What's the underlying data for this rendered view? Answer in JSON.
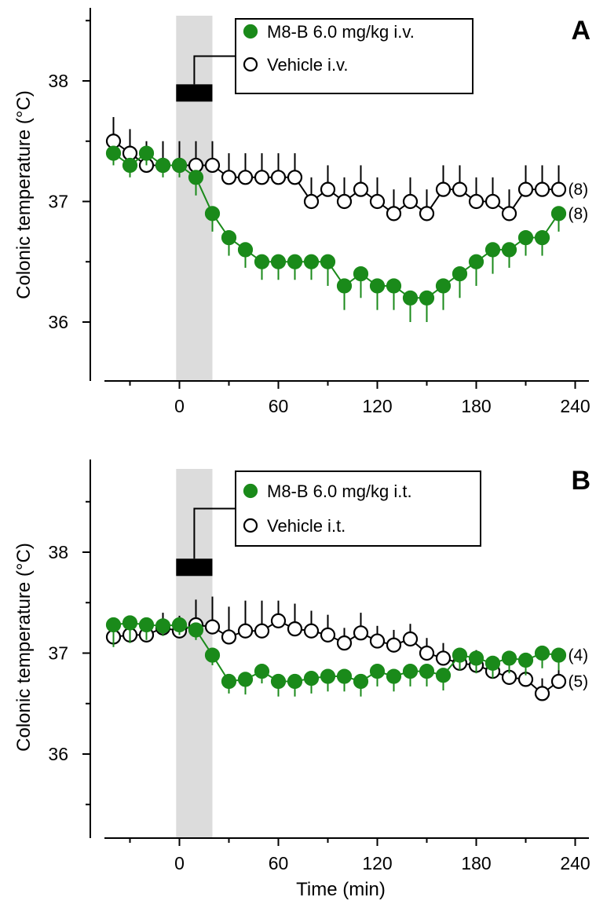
{
  "colors": {
    "drug": "#1a8a1a",
    "vehicle_stroke": "#000000",
    "vehicle_fill": "#ffffff",
    "shading": "#dcdcdc",
    "bar": "#000000"
  },
  "xlabel": "Time (min)",
  "chart_data": [
    {
      "type": "line",
      "panel": "A",
      "ylabel": "Colonic temperature (°C)",
      "xlabel": "",
      "xlim": [
        -42,
        250
      ],
      "ylim": [
        35.55,
        38.58
      ],
      "xticks": [
        0,
        60,
        120,
        180,
        240
      ],
      "xtick_labels": [
        "0",
        "60",
        "120",
        "180",
        "240"
      ],
      "yticks": [
        36,
        37,
        38
      ],
      "ytick_labels": [
        "36",
        "37",
        "38"
      ],
      "shaded_interval": [
        -2,
        20
      ],
      "infusion_bar": {
        "x": [
          -2,
          20
        ],
        "y": 37.9
      },
      "legend": {
        "location": "top-center",
        "entries": [
          "M8-B 6.0 mg/kg i.v.",
          "Vehicle i.v."
        ]
      },
      "series": [
        {
          "name": "M8-B 6.0 mg/kg i.v.",
          "marker": "filled-circle",
          "color": "#1a8a1a",
          "n_label": "(8)",
          "x": [
            -40,
            -30,
            -20,
            -10,
            0,
            10,
            20,
            30,
            40,
            50,
            60,
            70,
            80,
            90,
            100,
            110,
            120,
            130,
            140,
            150,
            160,
            170,
            180,
            190,
            200,
            210,
            220,
            230
          ],
          "y": [
            37.4,
            37.3,
            37.4,
            37.3,
            37.3,
            37.2,
            36.9,
            36.7,
            36.6,
            36.5,
            36.5,
            36.5,
            36.5,
            36.5,
            36.3,
            36.4,
            36.3,
            36.3,
            36.2,
            36.2,
            36.3,
            36.4,
            36.5,
            36.6,
            36.6,
            36.7,
            36.7,
            36.9
          ],
          "err": [
            0.1,
            0.1,
            0.1,
            0.1,
            0.1,
            0.15,
            0.15,
            0.15,
            0.15,
            0.15,
            0.15,
            0.15,
            0.15,
            0.2,
            0.2,
            0.2,
            0.2,
            0.2,
            0.2,
            0.2,
            0.2,
            0.2,
            0.2,
            0.2,
            0.15,
            0.15,
            0.15,
            0.15
          ]
        },
        {
          "name": "Vehicle i.v.",
          "marker": "open-circle",
          "color": "#000000",
          "n_label": "(8)",
          "x": [
            -40,
            -30,
            -20,
            -10,
            0,
            10,
            20,
            30,
            40,
            50,
            60,
            70,
            80,
            90,
            100,
            110,
            120,
            130,
            140,
            150,
            160,
            170,
            180,
            190,
            200,
            210,
            220,
            230
          ],
          "y": [
            37.5,
            37.4,
            37.3,
            37.3,
            37.3,
            37.3,
            37.3,
            37.2,
            37.2,
            37.2,
            37.2,
            37.2,
            37.0,
            37.1,
            37.0,
            37.1,
            37.0,
            36.9,
            37.0,
            36.9,
            37.1,
            37.1,
            37.0,
            37.0,
            36.9,
            37.1,
            37.1,
            37.1
          ],
          "err": [
            0.2,
            0.2,
            0.2,
            0.2,
            0.2,
            0.2,
            0.2,
            0.2,
            0.2,
            0.2,
            0.2,
            0.2,
            0.2,
            0.2,
            0.2,
            0.2,
            0.2,
            0.2,
            0.2,
            0.2,
            0.2,
            0.2,
            0.2,
            0.2,
            0.2,
            0.2,
            0.2,
            0.2
          ]
        }
      ]
    },
    {
      "type": "line",
      "panel": "B",
      "ylabel": "Colonic temperature (°C)",
      "xlabel": "Time (min)",
      "xlim": [
        -42,
        250
      ],
      "ylim": [
        35.55,
        38.58
      ],
      "xticks": [
        0,
        60,
        120,
        180,
        240
      ],
      "xtick_labels": [
        "0",
        "60",
        "120",
        "180",
        "240"
      ],
      "yticks": [
        36,
        37,
        38
      ],
      "ytick_labels": [
        "36",
        "37",
        "38"
      ],
      "shaded_interval": [
        -2,
        20
      ],
      "infusion_bar": {
        "x": [
          -2,
          20
        ],
        "y": 37.85
      },
      "legend": {
        "location": "top-center",
        "entries": [
          "M8-B 6.0 mg/kg i.t.",
          "Vehicle i.t."
        ]
      },
      "series": [
        {
          "name": "M8-B 6.0 mg/kg i.t.",
          "marker": "filled-circle",
          "color": "#1a8a1a",
          "n_label": "(4)",
          "x": [
            -40,
            -30,
            -20,
            -10,
            0,
            10,
            20,
            30,
            40,
            50,
            60,
            70,
            80,
            90,
            100,
            110,
            120,
            130,
            140,
            150,
            160,
            170,
            180,
            190,
            200,
            210,
            220,
            230
          ],
          "y": [
            37.28,
            37.3,
            37.28,
            37.27,
            37.28,
            37.23,
            36.98,
            36.72,
            36.74,
            36.82,
            36.72,
            36.72,
            36.75,
            36.77,
            36.77,
            36.72,
            36.82,
            36.77,
            36.82,
            36.82,
            36.78,
            36.98,
            36.95,
            36.9,
            36.95,
            36.93,
            37.0,
            36.98
          ],
          "err": [
            0.22,
            0.2,
            0.15,
            0.1,
            0.1,
            0.1,
            0.1,
            0.12,
            0.15,
            0.12,
            0.15,
            0.15,
            0.15,
            0.15,
            0.15,
            0.15,
            0.15,
            0.15,
            0.15,
            0.15,
            0.15,
            0.15,
            0.15,
            0.15,
            0.15,
            0.15,
            0.15,
            0.15
          ]
        },
        {
          "name": "Vehicle i.t.",
          "marker": "open-circle",
          "color": "#000000",
          "n_label": "(5)",
          "x": [
            -40,
            -30,
            -20,
            -10,
            0,
            10,
            20,
            30,
            40,
            50,
            60,
            70,
            80,
            90,
            100,
            110,
            120,
            130,
            140,
            150,
            160,
            170,
            180,
            190,
            200,
            210,
            220,
            230
          ],
          "y": [
            37.16,
            37.18,
            37.18,
            37.25,
            37.22,
            37.28,
            37.26,
            37.16,
            37.22,
            37.22,
            37.32,
            37.24,
            37.22,
            37.18,
            37.1,
            37.2,
            37.12,
            37.08,
            37.14,
            37.0,
            36.95,
            36.9,
            36.88,
            36.82,
            36.76,
            36.74,
            36.6,
            36.72
          ],
          "err": [
            0.15,
            0.15,
            0.15,
            0.15,
            0.15,
            0.25,
            0.3,
            0.3,
            0.3,
            0.3,
            0.2,
            0.25,
            0.2,
            0.2,
            0.15,
            0.2,
            0.15,
            0.15,
            0.15,
            0.15,
            0.15,
            0.15,
            0.15,
            0.15,
            0.15,
            0.15,
            0.15,
            0.15
          ]
        }
      ]
    }
  ]
}
